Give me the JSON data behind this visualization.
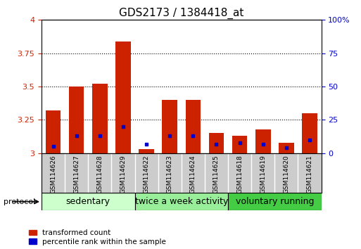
{
  "title": "GDS2173 / 1384418_at",
  "samples": [
    "GSM114626",
    "GSM114627",
    "GSM114628",
    "GSM114629",
    "GSM114622",
    "GSM114623",
    "GSM114624",
    "GSM114625",
    "GSM114618",
    "GSM114619",
    "GSM114620",
    "GSM114621"
  ],
  "red_bar_tops": [
    3.32,
    3.5,
    3.52,
    3.84,
    3.03,
    3.4,
    3.4,
    3.15,
    3.13,
    3.18,
    3.08,
    3.3
  ],
  "blue_dot_y": [
    3.05,
    3.13,
    3.13,
    3.2,
    3.065,
    3.13,
    3.13,
    3.065,
    3.08,
    3.065,
    3.04,
    3.1
  ],
  "bar_base": 3.0,
  "ylim": [
    3.0,
    4.0
  ],
  "yticks_left": [
    3.0,
    3.25,
    3.5,
    3.75,
    4.0
  ],
  "ytick_left_labels": [
    "3",
    "3.25",
    "3.5",
    "3.75",
    "4"
  ],
  "yticks_right_pct": [
    0,
    25,
    50,
    75,
    100
  ],
  "ytick_right_labels": [
    "0",
    "25",
    "50",
    "75",
    "100%"
  ],
  "left_ycolor": "#cc2200",
  "right_ycolor": "#0000cc",
  "groups": [
    {
      "label": "sedentary",
      "start": 0,
      "end": 4,
      "color": "#ccffcc"
    },
    {
      "label": "twice a week activity",
      "start": 4,
      "end": 8,
      "color": "#99ee99"
    },
    {
      "label": "voluntary running",
      "start": 8,
      "end": 12,
      "color": "#44cc44"
    }
  ],
  "bar_color": "#cc2200",
  "dot_color": "#0000cc",
  "bar_width": 0.65,
  "protocol_label": "protocol",
  "legend_red": "transformed count",
  "legend_blue": "percentile rank within the sample",
  "background_color": "#ffffff",
  "plot_bg": "#ffffff",
  "sample_box_color": "#cccccc",
  "title_fontsize": 11,
  "axis_fontsize": 8,
  "sample_fontsize": 6.5,
  "group_fontsize": 9,
  "legend_fontsize": 7.5
}
